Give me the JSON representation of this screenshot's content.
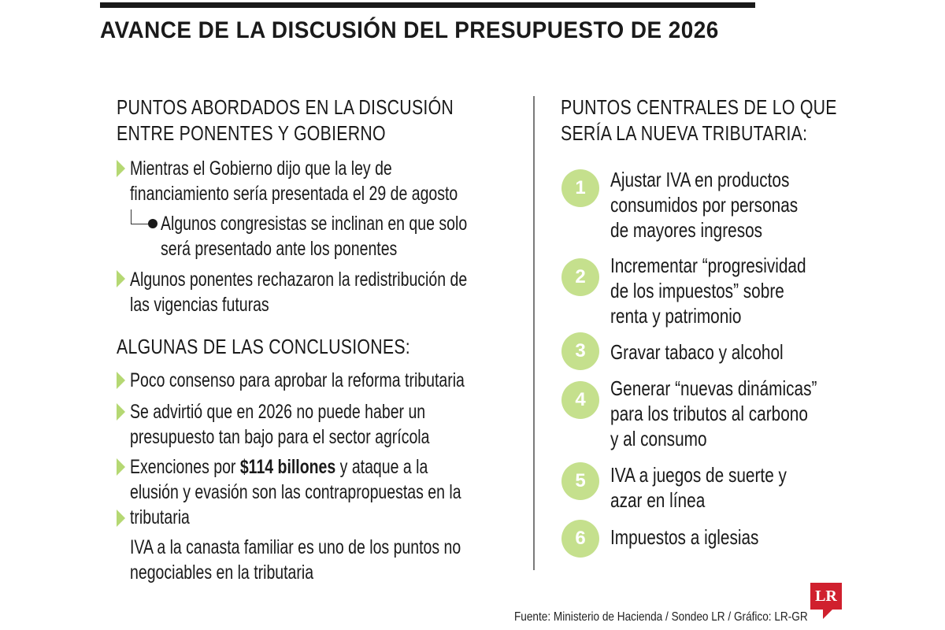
{
  "title": "AVANCE DE LA DISCUSIÓN DEL PRESUPUESTO DE 2026",
  "left": {
    "heading": [
      "PUNTOS ABORDADOS EN LA DISCUSIÓN",
      "ENTRE PONENTES Y GOBIERNO"
    ],
    "items": [
      [
        "Mientras el Gobierno dijo que la ley de",
        "financiamiento sería presentada el 29 de agosto"
      ],
      [
        "Algunos congresistas se inclinan en que solo",
        "será presentado ante los ponentes"
      ],
      [
        "Algunos ponentes rechazaron la redistribución de",
        "las vigencias futuras"
      ]
    ],
    "conclusions_heading": "ALGUNAS DE LAS CONCLUSIONES:",
    "conclusions": {
      "c1": "Poco consenso para aprobar la reforma tributaria",
      "c2": [
        "Se advirtió que en 2026 no puede haber un",
        "presupuesto tan bajo para el sector agrícola"
      ],
      "c3": {
        "before": "Exenciones por ",
        "amount": "$114 billones",
        "after": " y ataque a la",
        "line2": "elusión y evasión son las contrapropuestas en la",
        "line3": "tributaria"
      },
      "c4": [
        "IVA a la canasta familiar es uno de los puntos no",
        "negociables en la tributaria"
      ]
    }
  },
  "right": {
    "heading": [
      "PUNTOS CENTRALES DE LO QUE",
      "SERÍA LA NUEVA TRIBUTARIA:"
    ],
    "items": [
      {
        "num": "1",
        "lines": [
          "Ajustar IVA en productos",
          "consumidos por personas",
          "de mayores ingresos"
        ]
      },
      {
        "num": "2",
        "lines": [
          "Incrementar “progresividad",
          "de los impuestos” sobre",
          "renta y patrimonio"
        ]
      },
      {
        "num": "3",
        "lines": [
          "Gravar tabaco y alcohol"
        ]
      },
      {
        "num": "4",
        "lines": [
          "Generar “nuevas dinámicas”",
          "para los tributos al carbono",
          "y al consumo"
        ]
      },
      {
        "num": "5",
        "lines": [
          "IVA a juegos de suerte y",
          "azar en línea"
        ]
      },
      {
        "num": "6",
        "lines": [
          "Impuestos a iglesias"
        ]
      }
    ]
  },
  "source": "Fuente: Ministerio de Hacienda / Sondeo LR / Gráfico: LR-GR",
  "logo": "LR",
  "colors": {
    "accent_green": "#c5e08d",
    "arrow_green": "#b5d873",
    "logo_red": "#d0202e"
  }
}
